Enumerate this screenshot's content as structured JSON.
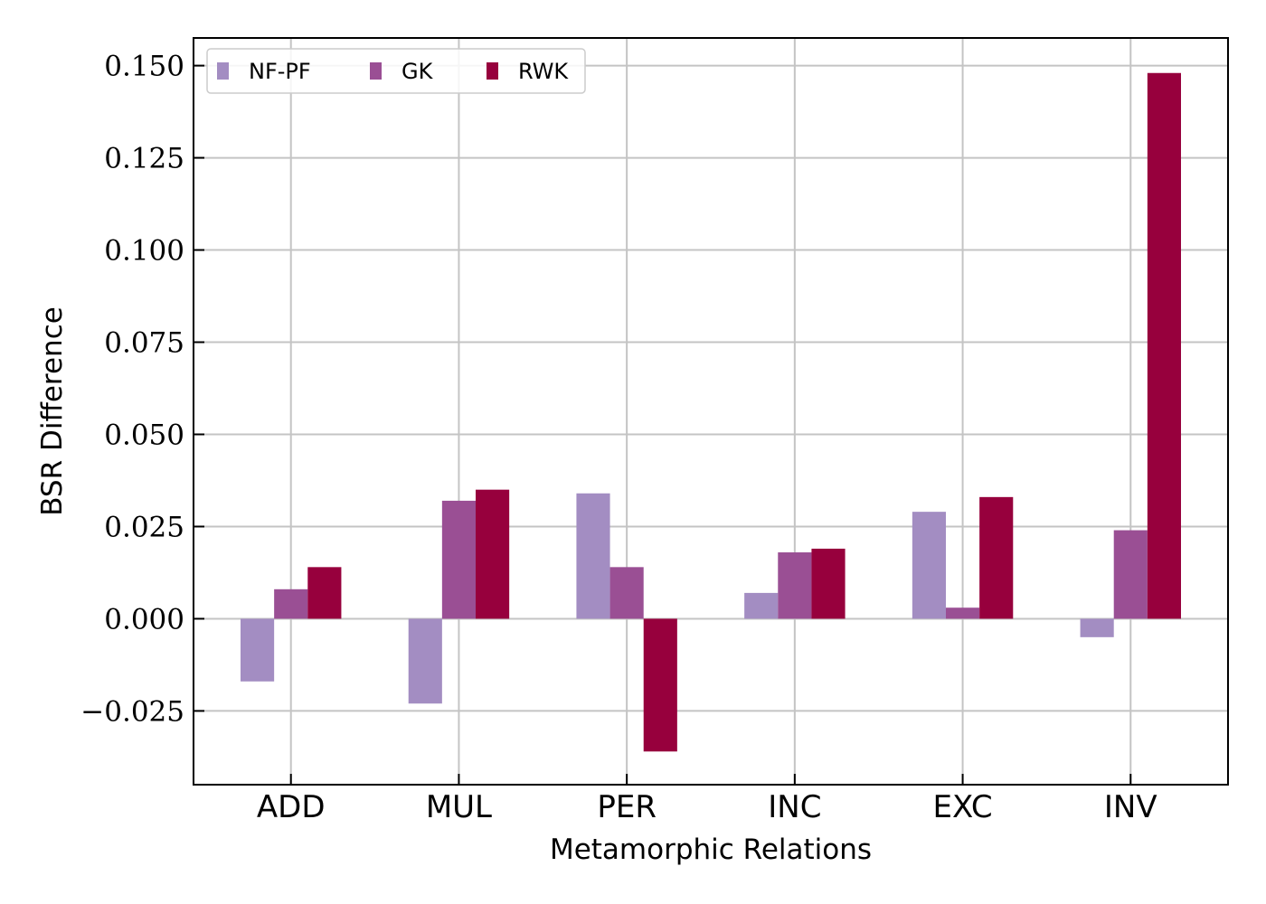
{
  "chart_data": {
    "type": "bar",
    "xlabel": "Metamorphic Relations",
    "ylabel": "BSR Difference",
    "categories": [
      "ADD",
      "MUL",
      "PER",
      "INC",
      "EXC",
      "INV"
    ],
    "series": [
      {
        "name": "NF-PF",
        "color": "#a38dc2",
        "values": [
          -0.017,
          -0.023,
          0.034,
          0.007,
          0.029,
          -0.005
        ]
      },
      {
        "name": "GK",
        "color": "#9a4f94",
        "values": [
          0.008,
          0.032,
          0.014,
          0.018,
          0.003,
          0.024
        ]
      },
      {
        "name": "RWK",
        "color": "#97003d",
        "values": [
          0.014,
          0.035,
          -0.036,
          0.019,
          0.033,
          0.148
        ]
      }
    ],
    "ylim": [
      -0.045,
      0.1575
    ],
    "yticks": [
      -0.025,
      0.0,
      0.025,
      0.05,
      0.075,
      0.1,
      0.125,
      0.15
    ],
    "ytick_labels": [
      "−0.025",
      "0.000",
      "0.025",
      "0.050",
      "0.075",
      "0.100",
      "0.125",
      "0.150"
    ],
    "grid": true,
    "legend_position": "top-left",
    "legend_columns": 3
  }
}
